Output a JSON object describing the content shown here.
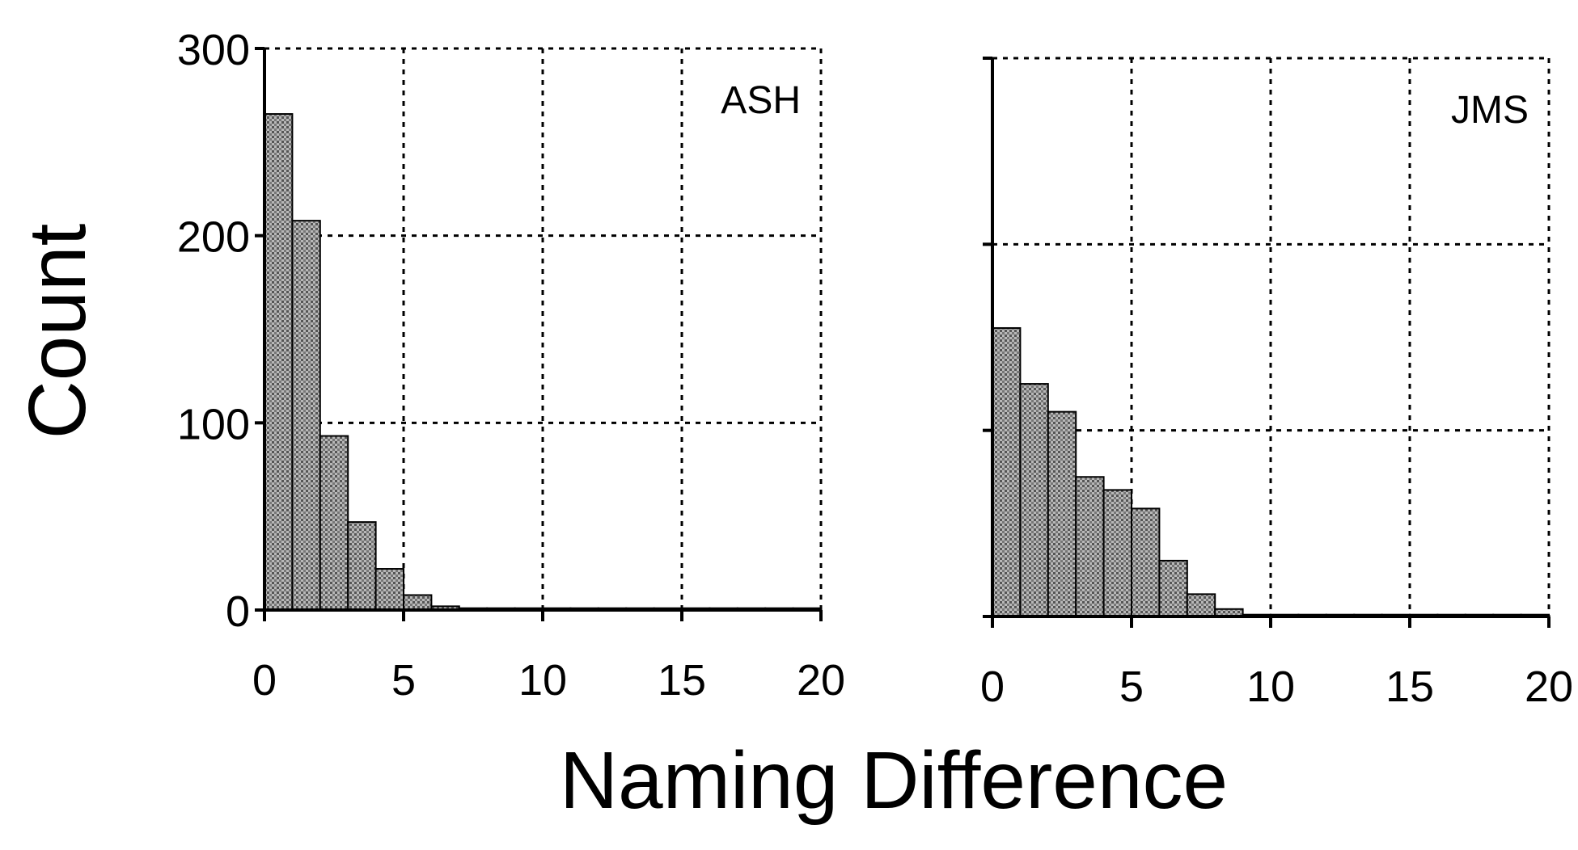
{
  "chart_data": [
    {
      "type": "bar",
      "panel_label": "ASH",
      "x": [
        0.5,
        1.5,
        2.5,
        3.5,
        4.5,
        5.5,
        6.5,
        7.5,
        8.5,
        9.5,
        10.5,
        11.5,
        12.5,
        13.5,
        14.5,
        15.5,
        16.5,
        17.5,
        18.5,
        19.5
      ],
      "values": [
        265,
        208,
        93,
        47,
        22,
        8,
        2,
        1,
        1,
        1,
        1,
        1,
        1,
        1,
        1,
        1,
        1,
        1,
        1,
        1
      ],
      "bin_width": 1,
      "xlim": [
        0,
        20
      ],
      "ylim": [
        0,
        300
      ],
      "x_ticks": [
        "0",
        "5",
        "10",
        "15",
        "20"
      ],
      "y_ticks": [
        "0",
        "100",
        "200",
        "300"
      ],
      "grid": true
    },
    {
      "type": "bar",
      "panel_label": "JMS",
      "x": [
        0.5,
        1.5,
        2.5,
        3.5,
        4.5,
        5.5,
        6.5,
        7.5,
        8.5,
        9.5,
        10.5,
        11.5,
        12.5,
        13.5,
        14.5,
        15.5,
        16.5,
        17.5,
        18.5,
        19.5
      ],
      "values": [
        155,
        125,
        110,
        75,
        68,
        58,
        30,
        12,
        4,
        1,
        1,
        1,
        1,
        1,
        1,
        1,
        1,
        1,
        1,
        1
      ],
      "bin_width": 1,
      "xlim": [
        0,
        20
      ],
      "ylim": [
        0,
        300
      ],
      "x_ticks": [
        "0",
        "5",
        "10",
        "15",
        "20"
      ],
      "y_ticks": [],
      "grid": true
    }
  ],
  "ylabel": "Count",
  "xlabel": "Naming Difference",
  "colors": {
    "bar_fill": "#9a9a9a",
    "axis": "#000000"
  }
}
